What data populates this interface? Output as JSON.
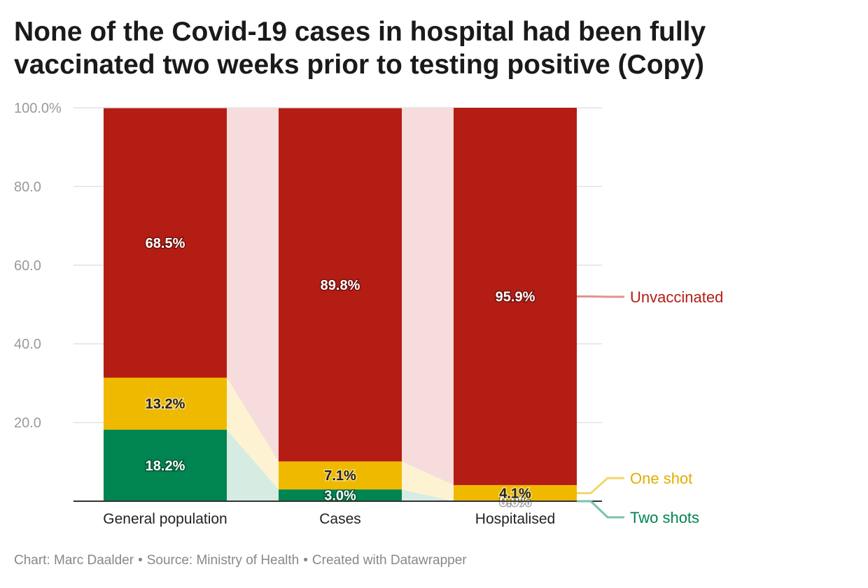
{
  "chart_data": {
    "type": "bar",
    "stacked": true,
    "title": "None of the Covid-19 cases in hospital had been fully vaccinated two weeks prior to testing positive (Copy)",
    "categories": [
      "General population",
      "Cases",
      "Hospitalised"
    ],
    "series": [
      {
        "name": "Two shots",
        "values": [
          18.2,
          3.0,
          0.0
        ],
        "labels": [
          "18.2%",
          "3.0%",
          "0.0%"
        ],
        "color": "#008450",
        "band_color": "#d6ece2",
        "label_color": "#ffffff",
        "legend_line_color": "#7cc3a8",
        "legend_text_color": "#008450"
      },
      {
        "name": "One shot",
        "values": [
          13.2,
          7.1,
          4.1
        ],
        "labels": [
          "13.2%",
          "7.1%",
          "4.1%"
        ],
        "color": "#efb900",
        "band_color": "#fdf3d2",
        "label_color": "#222222",
        "legend_line_color": "#f4d66d",
        "legend_text_color": "#e5ad00"
      },
      {
        "name": "Unvaccinated",
        "values": [
          68.5,
          89.8,
          95.9
        ],
        "labels": [
          "68.5%",
          "89.8%",
          "95.9%"
        ],
        "color": "#b31d14",
        "band_color": "#f6dcdc",
        "label_color": "#ffffff",
        "legend_line_color": "#e29390",
        "legend_text_color": "#b31d14"
      }
    ],
    "y_ticks": [
      0,
      20,
      40,
      60,
      80,
      100
    ],
    "y_tick_labels": [
      "",
      "20.0",
      "40.0",
      "60.0",
      "80.0",
      "100.0%"
    ],
    "ylim": [
      0,
      100
    ],
    "xlabel": "",
    "ylabel": "",
    "grid": true,
    "legend": "right, direct labels"
  },
  "footer": {
    "chart_credit": "Chart: Marc Daalder",
    "source": "Source: Ministry of Health",
    "created_with": "Created with Datawrapper",
    "separator": "•"
  }
}
